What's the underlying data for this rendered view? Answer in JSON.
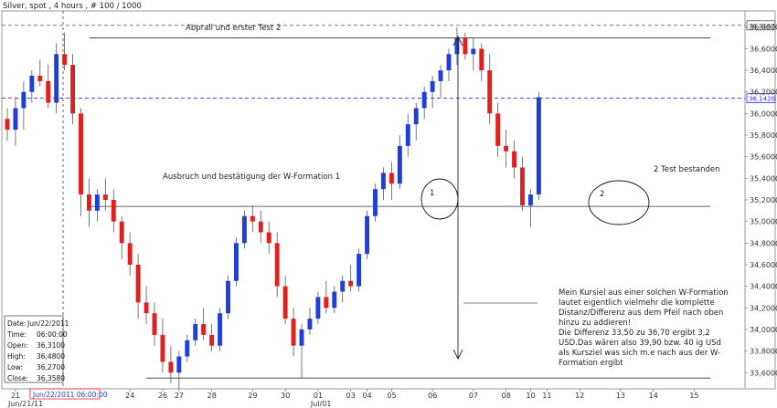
{
  "header": {
    "title": "Silver, spot , 4 hours , # 100 / 1000"
  },
  "chart_data": {
    "type": "candlestick",
    "instrument": "Silver, spot",
    "timeframe": "4 hours",
    "ylim": [
      33.45,
      36.95
    ],
    "y_ticks": [
      "36,8000",
      "36,6000",
      "36,4000",
      "36,2000",
      "36,0000",
      "35,8000",
      "35,6000",
      "35,4000",
      "35,2000",
      "35,0000",
      "34,8000",
      "34,6000",
      "34,4000",
      "34,2000",
      "34,0000",
      "33,8000",
      "33,6000",
      "33,4000"
    ],
    "y_tick_values": [
      36.8,
      36.6,
      36.4,
      36.2,
      36.0,
      35.8,
      35.6,
      35.4,
      35.2,
      35.0,
      34.8,
      34.6,
      34.4,
      34.2,
      34.0,
      33.8,
      33.6,
      33.4
    ],
    "x_labels": [
      {
        "text": "21",
        "i": 1
      },
      {
        "text": "24",
        "i": 15
      },
      {
        "text": "26",
        "i": 19
      },
      {
        "text": "27",
        "i": 21
      },
      {
        "text": "28",
        "i": 25
      },
      {
        "text": "29",
        "i": 30
      },
      {
        "text": "30",
        "i": 34
      },
      {
        "text": "01",
        "i": 38
      },
      {
        "text": "03",
        "i": 42
      },
      {
        "text": "04",
        "i": 44
      },
      {
        "text": "05",
        "i": 47
      },
      {
        "text": "06",
        "i": 52
      },
      {
        "text": "07",
        "i": 57
      },
      {
        "text": "08",
        "i": 61
      },
      {
        "text": "10",
        "i": 64
      },
      {
        "text": "11",
        "i": 66
      },
      {
        "text": "12",
        "i": 70
      },
      {
        "text": "13",
        "i": 75
      },
      {
        "text": "14",
        "i": 79
      },
      {
        "text": "15",
        "i": 84
      }
    ],
    "x_sublabels": [
      {
        "text": "Jun/21/11",
        "i": 1
      },
      {
        "text": "Jul/01",
        "i": 38
      }
    ],
    "candles": [
      [
        35.95,
        36.05,
        35.75,
        35.85
      ],
      [
        35.85,
        36.15,
        35.7,
        36.05
      ],
      [
        36.05,
        36.3,
        35.85,
        36.2
      ],
      [
        36.2,
        36.4,
        36.1,
        36.35
      ],
      [
        36.35,
        36.5,
        36.25,
        36.3
      ],
      [
        36.3,
        36.45,
        36.05,
        36.1
      ],
      [
        36.1,
        36.65,
        36.0,
        36.55
      ],
      [
        36.55,
        36.75,
        36.4,
        36.45
      ],
      [
        36.45,
        36.55,
        35.9,
        36.0
      ],
      [
        36.0,
        36.05,
        35.05,
        35.25
      ],
      [
        35.25,
        35.4,
        34.95,
        35.1
      ],
      [
        35.1,
        35.3,
        35.0,
        35.25
      ],
      [
        35.25,
        35.4,
        35.1,
        35.2
      ],
      [
        35.2,
        35.3,
        34.9,
        35.0
      ],
      [
        35.0,
        35.05,
        34.65,
        34.8
      ],
      [
        34.8,
        34.9,
        34.5,
        34.6
      ],
      [
        34.6,
        34.7,
        34.1,
        34.25
      ],
      [
        34.25,
        34.4,
        34.05,
        34.15
      ],
      [
        34.15,
        34.25,
        33.85,
        33.95
      ],
      [
        33.95,
        34.1,
        33.6,
        33.7
      ],
      [
        33.7,
        33.85,
        33.5,
        33.6
      ],
      [
        33.6,
        33.8,
        33.45,
        33.75
      ],
      [
        33.75,
        33.95,
        33.7,
        33.9
      ],
      [
        33.9,
        34.1,
        33.85,
        34.05
      ],
      [
        34.05,
        34.2,
        33.9,
        33.95
      ],
      [
        33.95,
        34.05,
        33.8,
        33.85
      ],
      [
        33.85,
        34.2,
        33.8,
        34.15
      ],
      [
        34.15,
        34.5,
        34.1,
        34.45
      ],
      [
        34.45,
        34.85,
        34.4,
        34.8
      ],
      [
        34.8,
        35.1,
        34.75,
        35.05
      ],
      [
        35.05,
        35.15,
        34.9,
        35.0
      ],
      [
        35.0,
        35.1,
        34.8,
        34.9
      ],
      [
        34.9,
        35.0,
        34.7,
        34.8
      ],
      [
        34.8,
        34.9,
        34.3,
        34.4
      ],
      [
        34.4,
        34.5,
        34.05,
        34.1
      ],
      [
        34.1,
        34.2,
        33.75,
        33.85
      ],
      [
        33.85,
        34.05,
        33.55,
        34.0
      ],
      [
        34.0,
        34.2,
        33.95,
        34.1
      ],
      [
        34.1,
        34.35,
        34.05,
        34.3
      ],
      [
        34.3,
        34.45,
        34.15,
        34.2
      ],
      [
        34.2,
        34.4,
        34.15,
        34.35
      ],
      [
        34.35,
        34.5,
        34.25,
        34.45
      ],
      [
        34.45,
        34.6,
        34.35,
        34.4
      ],
      [
        34.4,
        34.75,
        34.35,
        34.7
      ],
      [
        34.7,
        35.1,
        34.65,
        35.05
      ],
      [
        35.05,
        35.35,
        35.0,
        35.3
      ],
      [
        35.3,
        35.5,
        35.2,
        35.45
      ],
      [
        35.45,
        35.55,
        35.2,
        35.35
      ],
      [
        35.35,
        35.8,
        35.3,
        35.7
      ],
      [
        35.7,
        36.0,
        35.6,
        35.9
      ],
      [
        35.9,
        36.1,
        35.75,
        36.05
      ],
      [
        36.05,
        36.25,
        35.95,
        36.2
      ],
      [
        36.2,
        36.35,
        36.05,
        36.3
      ],
      [
        36.3,
        36.45,
        36.15,
        36.4
      ],
      [
        36.4,
        36.6,
        36.3,
        36.55
      ],
      [
        36.55,
        36.8,
        36.45,
        36.7
      ],
      [
        36.7,
        36.75,
        36.5,
        36.55
      ],
      [
        36.55,
        36.7,
        36.4,
        36.6
      ],
      [
        36.6,
        36.65,
        36.3,
        36.4
      ],
      [
        36.4,
        36.55,
        35.9,
        36.0
      ],
      [
        36.0,
        36.1,
        35.6,
        35.7
      ],
      [
        35.7,
        35.85,
        35.5,
        35.65
      ],
      [
        35.65,
        35.75,
        35.4,
        35.5
      ],
      [
        35.5,
        35.6,
        35.1,
        35.15
      ],
      [
        35.15,
        35.3,
        34.95,
        35.25
      ],
      [
        35.25,
        36.2,
        35.2,
        36.15
      ]
    ],
    "candle_index_start": 0,
    "series_style": {
      "up": "#1f3fd6",
      "down": "#e02020"
    },
    "hlines": [
      {
        "value": 36.8167,
        "label": "36,8167",
        "style": "dashed",
        "color": "#555555"
      },
      {
        "value": 36.142,
        "label": "36,1420",
        "style": "dashed",
        "color": "#3030e0"
      },
      {
        "value": 36.7,
        "style": "solid",
        "color": "#333333"
      },
      {
        "value": 35.14,
        "style": "solid",
        "color": "#333333"
      },
      {
        "value": 33.55,
        "style": "solid",
        "color": "#333333"
      }
    ],
    "annotations": {
      "top": "Abprall und erster Test 2",
      "breakout": "Ausbruch und bestätigung der W-Formation  1",
      "test2": "2 Test bestanden",
      "circle1": "1",
      "circle2": "2",
      "note_lines": [
        "Mein Kursiel aus einer solchen W-Formation",
        "lautet eigentlich vielmehr die komplette",
        "Distanz/Differenz aus dem Pfeil nach oben",
        "hinzu zu addieren!",
        "Die Differenz 33,50 zu 36,70 ergibt 3,2",
        "USD.Das wären also 39,90 bzw. 40 ig USd",
        "als Kursziel was sich m.e nach aus der W-",
        "Formation ergibt"
      ]
    }
  },
  "data_window": {
    "rows": [
      {
        "label": "Date:",
        "value": "Jun/22/2011"
      },
      {
        "label": "Time:",
        "value": "06:00:00"
      },
      {
        "label": "Open:",
        "value": "36,3100"
      },
      {
        "label": "High:",
        "value": "36,4800"
      },
      {
        "label": "Low:",
        "value": "36,2700"
      },
      {
        "label": "Close:",
        "value": "36,3580"
      }
    ]
  },
  "cursor_label": "Jun/22/2011 06:00:00",
  "colors": {
    "up": "#1f3fd6",
    "down": "#e02020",
    "price_tag_border": "#3030e0"
  }
}
